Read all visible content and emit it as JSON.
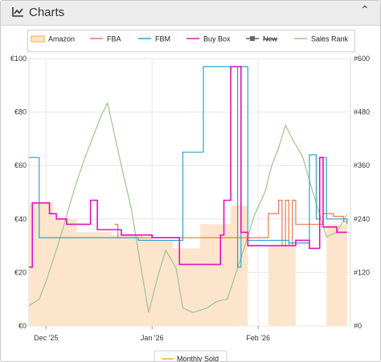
{
  "header": {
    "title": "Charts",
    "collapse_icon": "chevron-up-icon"
  },
  "colors": {
    "amazon": "#f6a73b",
    "amazon_fill": "#fce5cc",
    "fba": "#ee7a4e",
    "fbm": "#2aa3d4",
    "buybox": "#e214ba",
    "new": "#666666",
    "salesrank": "#9cc58e"
  },
  "chart_data": {
    "type": "line",
    "x_axis": {
      "type": "date",
      "range": [
        "2025-11-26",
        "2026-02-28"
      ],
      "tick_labels": [
        "Dec '25",
        "Jan '26",
        "Feb '26"
      ],
      "ticks": [
        "2025-12-01",
        "2026-01-01",
        "2026-02-01"
      ]
    },
    "y_left": {
      "range": [
        0,
        100
      ],
      "tick_labels": [
        "€0",
        "€20",
        "€40",
        "€60",
        "€80",
        "€100"
      ],
      "ticks": [
        0,
        20,
        40,
        60,
        80,
        100
      ]
    },
    "y_right": {
      "range": [
        0,
        600
      ],
      "tick_labels": [
        "#0",
        "#120",
        "#240",
        "#360",
        "#480",
        "#600"
      ],
      "ticks": [
        0,
        120,
        240,
        360,
        480,
        600
      ]
    },
    "grid": true,
    "legend_position": "top",
    "legend": [
      {
        "name": "Amazon",
        "key": "amazon",
        "style": "area"
      },
      {
        "name": "FBA",
        "key": "fba",
        "style": "line"
      },
      {
        "name": "FBM",
        "key": "fbm",
        "style": "line"
      },
      {
        "name": "Buy Box",
        "key": "buybox",
        "style": "line"
      },
      {
        "name": "New",
        "key": "new",
        "style": "marker",
        "disabled": true
      },
      {
        "name": "Sales Rank",
        "key": "salesrank",
        "style": "line"
      }
    ],
    "series": [
      {
        "name": "Amazon",
        "key": "amazon",
        "axis": "left",
        "kind": "step-area",
        "points": [
          [
            "2025-11-26",
            46
          ],
          [
            "2025-12-03",
            40
          ],
          [
            "2025-12-10",
            35
          ],
          [
            "2025-12-20",
            34
          ],
          [
            "2025-12-29",
            33
          ],
          [
            "2026-01-01",
            32
          ],
          [
            "2026-01-07",
            29
          ],
          [
            "2026-01-15",
            38
          ],
          [
            "2026-01-24",
            45
          ],
          [
            "2026-01-29",
            null
          ],
          [
            "2026-02-04",
            30
          ],
          [
            "2026-02-12",
            null
          ],
          [
            "2026-02-21",
            38
          ],
          [
            "2026-02-27",
            38
          ]
        ]
      },
      {
        "name": "FBA",
        "key": "fba",
        "axis": "left",
        "kind": "step",
        "points": [
          [
            "2025-12-21",
            38
          ],
          [
            "2025-12-22",
            33
          ],
          [
            "2026-02-04",
            42
          ],
          [
            "2026-02-07",
            42
          ],
          [
            "2026-02-07",
            47
          ],
          [
            "2026-02-08",
            30
          ],
          [
            "2026-02-09",
            47
          ],
          [
            "2026-02-10",
            30
          ],
          [
            "2026-02-11",
            47
          ],
          [
            "2026-02-12",
            38
          ],
          [
            "2026-02-20",
            42
          ],
          [
            "2026-02-23",
            41
          ],
          [
            "2026-02-26",
            39
          ],
          [
            "2026-02-27",
            39
          ]
        ]
      },
      {
        "name": "FBM",
        "key": "fbm",
        "axis": "left",
        "kind": "step",
        "points": [
          [
            "2025-11-26",
            63
          ],
          [
            "2025-11-29",
            33
          ],
          [
            "2025-12-28",
            32
          ],
          [
            "2026-01-08",
            32
          ],
          [
            "2026-01-10",
            65
          ],
          [
            "2026-01-16",
            97
          ],
          [
            "2026-01-26",
            22
          ],
          [
            "2026-01-27",
            97
          ],
          [
            "2026-01-29",
            32
          ],
          [
            "2026-02-10",
            31
          ],
          [
            "2026-02-16",
            64
          ],
          [
            "2026-02-18",
            40
          ],
          [
            "2026-02-19",
            63
          ],
          [
            "2026-02-21",
            40
          ],
          [
            "2026-02-27",
            38
          ]
        ]
      },
      {
        "name": "Buy Box",
        "key": "buybox",
        "axis": "left",
        "kind": "step",
        "points": [
          [
            "2025-11-26",
            22
          ],
          [
            "2025-11-27",
            46
          ],
          [
            "2025-12-02",
            42
          ],
          [
            "2025-12-04",
            40
          ],
          [
            "2025-12-07",
            38
          ],
          [
            "2025-12-14",
            47
          ],
          [
            "2025-12-16",
            36
          ],
          [
            "2025-12-23",
            34
          ],
          [
            "2026-01-01",
            33
          ],
          [
            "2026-01-09",
            23
          ],
          [
            "2026-01-21",
            34
          ],
          [
            "2026-01-22",
            47
          ],
          [
            "2026-01-24",
            97
          ],
          [
            "2026-01-27",
            35
          ],
          [
            "2026-01-29",
            30
          ],
          [
            "2026-02-12",
            32
          ],
          [
            "2026-02-16",
            29
          ],
          [
            "2026-02-19",
            63
          ],
          [
            "2026-02-20",
            37
          ],
          [
            "2026-02-24",
            35
          ],
          [
            "2026-02-27",
            35
          ]
        ]
      },
      {
        "name": "Sales Rank",
        "key": "salesrank",
        "axis": "right",
        "kind": "line",
        "points": [
          [
            "2025-11-26",
            45
          ],
          [
            "2025-11-29",
            60
          ],
          [
            "2025-12-01",
            100
          ],
          [
            "2025-12-04",
            170
          ],
          [
            "2025-12-06",
            220
          ],
          [
            "2025-12-09",
            300
          ],
          [
            "2025-12-12",
            370
          ],
          [
            "2025-12-15",
            430
          ],
          [
            "2025-12-17",
            470
          ],
          [
            "2025-12-19",
            500
          ],
          [
            "2025-12-21",
            430
          ],
          [
            "2025-12-23",
            360
          ],
          [
            "2025-12-26",
            260
          ],
          [
            "2025-12-29",
            120
          ],
          [
            "2025-12-31",
            30
          ],
          [
            "2026-01-03",
            120
          ],
          [
            "2026-01-05",
            170
          ],
          [
            "2026-01-08",
            130
          ],
          [
            "2026-01-10",
            40
          ],
          [
            "2026-01-13",
            30
          ],
          [
            "2026-01-17",
            40
          ],
          [
            "2026-01-20",
            55
          ],
          [
            "2026-01-23",
            60
          ],
          [
            "2026-01-26",
            130
          ],
          [
            "2026-01-29",
            200
          ],
          [
            "2026-01-31",
            250
          ],
          [
            "2026-02-03",
            300
          ],
          [
            "2026-02-05",
            360
          ],
          [
            "2026-02-07",
            400
          ],
          [
            "2026-02-09",
            450
          ],
          [
            "2026-02-11",
            420
          ],
          [
            "2026-02-14",
            380
          ],
          [
            "2026-02-17",
            300
          ],
          [
            "2026-02-19",
            250
          ],
          [
            "2026-02-21",
            200
          ],
          [
            "2026-02-24",
            210
          ],
          [
            "2026-02-27",
            250
          ]
        ]
      }
    ],
    "bottom_legend": [
      {
        "name": "Monthly Sold",
        "key": "amazon"
      }
    ]
  }
}
